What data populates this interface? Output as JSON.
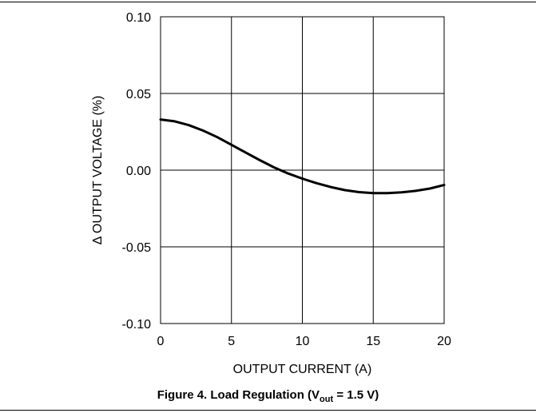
{
  "chart_data": {
    "type": "line",
    "xlabel": "OUTPUT CURRENT (A)",
    "ylabel": "Δ OUTPUT VOLTAGE (%)",
    "xlim": [
      0,
      20
    ],
    "ylim": [
      -0.1,
      0.1
    ],
    "grid": true,
    "x_ticks": [
      "0",
      "5",
      "10",
      "15",
      "20"
    ],
    "y_ticks": [
      "0.10",
      "0.05",
      "0.00",
      "-0.05",
      "-0.10"
    ],
    "series": [
      {
        "x": [
          0,
          1,
          2,
          3,
          4,
          5,
          6,
          7,
          8,
          9,
          10,
          11,
          12,
          13,
          14,
          15,
          16,
          17,
          18,
          19,
          20
        ],
        "y": [
          0.033,
          0.0318,
          0.0293,
          0.0258,
          0.0215,
          0.0165,
          0.0115,
          0.0065,
          0.0018,
          -0.0022,
          -0.0055,
          -0.0085,
          -0.011,
          -0.013,
          -0.0143,
          -0.015,
          -0.015,
          -0.0145,
          -0.0135,
          -0.012,
          -0.0097
        ]
      }
    ]
  },
  "caption": {
    "prefix": "Figure 4. Load Regulation (V",
    "subscript": "out",
    "suffix": " = 1.5 V)"
  }
}
